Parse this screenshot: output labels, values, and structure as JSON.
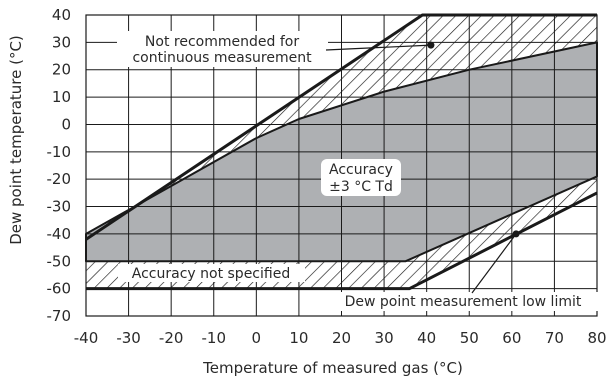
{
  "chart_data": {
    "type": "area",
    "xlabel": "Temperature of measured gas  (°C)",
    "ylabel": "Dew point  temperature (°C)",
    "xlim": [
      -40,
      80
    ],
    "ylim": [
      -70,
      40
    ],
    "x_ticks": [
      -40,
      -30,
      -20,
      -10,
      0,
      10,
      20,
      30,
      40,
      50,
      60,
      70,
      80
    ],
    "y_ticks": [
      40,
      30,
      20,
      10,
      0,
      -10,
      -20,
      -30,
      -40,
      -50,
      -60,
      -70
    ],
    "grid": true,
    "regions": [
      {
        "label": "Accuracy ±3 °C Td",
        "fill": "gray",
        "points": [
          [
            -40,
            -50
          ],
          [
            35,
            -50
          ],
          [
            80,
            -19
          ],
          [
            80,
            30
          ],
          [
            50,
            20
          ],
          [
            30,
            12
          ],
          [
            10,
            2
          ],
          [
            0,
            -5
          ],
          [
            -40,
            -40
          ]
        ]
      },
      {
        "label": "Not recommended for continuous measurement",
        "fill": "hatched",
        "points": [
          [
            -40,
            -40
          ],
          [
            0,
            -5
          ],
          [
            10,
            2
          ],
          [
            30,
            12
          ],
          [
            50,
            20
          ],
          [
            80,
            30
          ],
          [
            80,
            40
          ],
          [
            39,
            40
          ],
          [
            -40,
            -42
          ]
        ]
      },
      {
        "label": "Accuracy not specified",
        "fill": "hatched",
        "points": [
          [
            -40,
            -50
          ],
          [
            35,
            -50
          ],
          [
            80,
            -19
          ],
          [
            80,
            -25
          ],
          [
            36,
            -60
          ],
          [
            -40,
            -60
          ]
        ]
      }
    ],
    "boundary_lines": [
      {
        "name": "upper limit",
        "points": [
          [
            -40,
            -42
          ],
          [
            39,
            40
          ],
          [
            80,
            40
          ]
        ]
      },
      {
        "name": "low limit",
        "points": [
          [
            -40,
            -60
          ],
          [
            36,
            -60
          ],
          [
            80,
            -25
          ]
        ]
      }
    ],
    "annotations": [
      {
        "text_lines": [
          "Not recommended for",
          "continuous measurement"
        ],
        "points_to": [
          41,
          29
        ]
      },
      {
        "text_lines": [
          "Accuracy",
          "±3 °C Td"
        ],
        "points_to": null
      },
      {
        "text_lines": [
          "Accuracy not specified"
        ],
        "points_to": null
      },
      {
        "text_lines": [
          "Dew point measurement low limit"
        ],
        "points_to": [
          61,
          -40
        ]
      }
    ]
  },
  "colors": {
    "accuracy_fill": "#aeb0b3",
    "line": "#1a1a1a",
    "grid": "#1a1a1a",
    "text": "#2a2a2a"
  }
}
